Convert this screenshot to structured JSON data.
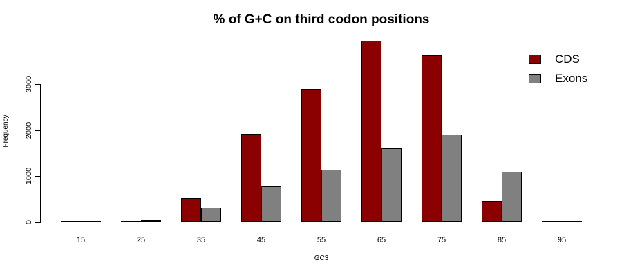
{
  "chart_data": {
    "type": "bar",
    "title": "% of G+C on third codon positions",
    "xlabel": "GC3",
    "ylabel": "Frequency",
    "categories": [
      "15",
      "25",
      "35",
      "45",
      "55",
      "65",
      "75",
      "85",
      "95"
    ],
    "series": [
      {
        "name": "CDS",
        "color": "#8B0000",
        "values": [
          5,
          10,
          530,
          1920,
          2900,
          3940,
          3630,
          450,
          5
        ]
      },
      {
        "name": "Exons",
        "color": "#808080",
        "values": [
          5,
          40,
          320,
          780,
          1140,
          1600,
          1910,
          1090,
          25
        ]
      }
    ],
    "yticks": [
      0,
      1000,
      2000,
      3000
    ],
    "ylim": [
      0,
      4000
    ],
    "legend_position": "top-right",
    "grid": false,
    "background": "#ffffff"
  }
}
